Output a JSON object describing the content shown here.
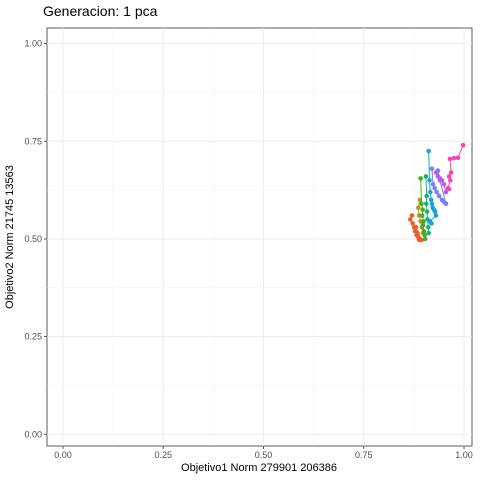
{
  "chart_data": {
    "type": "scatter",
    "title": "Generacion: 1 pca",
    "xlabel": "Objetivo1 Norm 279901 206386",
    "ylabel": "Objetivo2 Norm 21745 13563",
    "xlim": [
      -0.04,
      1.02
    ],
    "ylim": [
      -0.03,
      1.04
    ],
    "x_ticks": [
      0.0,
      0.25,
      0.5,
      0.75,
      1.0
    ],
    "x_tick_labels": [
      "0.00",
      "0.25",
      "0.50",
      "0.75",
      "1.00"
    ],
    "y_ticks": [
      0.0,
      0.25,
      0.5,
      0.75,
      1.0
    ],
    "y_tick_labels": [
      "0.00",
      "0.25",
      "0.50",
      "0.75",
      "1.00"
    ],
    "grid": true,
    "connected": true,
    "series": [
      {
        "color": "#E7612F",
        "x": [
          0.87,
          0.866,
          0.872,
          0.876,
          0.878,
          0.882,
          0.886,
          0.89,
          0.894,
          0.88,
          0.884,
          0.888
        ],
        "y": [
          0.56,
          0.55,
          0.54,
          0.53,
          0.52,
          0.51,
          0.505,
          0.5,
          0.497,
          0.53,
          0.515,
          0.498
        ]
      },
      {
        "color": "#B09C1E",
        "x": [
          0.89,
          0.886,
          0.888,
          0.892,
          0.895,
          0.898
        ],
        "y": [
          0.6,
          0.58,
          0.56,
          0.545,
          0.53,
          0.515
        ]
      },
      {
        "color": "#4FA821",
        "x": [
          0.892,
          0.894,
          0.897,
          0.896,
          0.899,
          0.898,
          0.9,
          0.902,
          0.903
        ],
        "y": [
          0.655,
          0.59,
          0.575,
          0.56,
          0.545,
          0.535,
          0.52,
          0.51,
          0.5
        ]
      },
      {
        "color": "#13B37D",
        "x": [
          0.905,
          0.907,
          0.906,
          0.908,
          0.909,
          0.911,
          0.912
        ],
        "y": [
          0.66,
          0.61,
          0.59,
          0.57,
          0.55,
          0.53,
          0.515
        ]
      },
      {
        "color": "#1BA3D6",
        "x": [
          0.912,
          0.914,
          0.916,
          0.918,
          0.92,
          0.922,
          0.925,
          0.928,
          0.93,
          0.915,
          0.919
        ],
        "y": [
          0.725,
          0.65,
          0.62,
          0.6,
          0.59,
          0.58,
          0.575,
          0.57,
          0.56,
          0.545,
          0.54
        ]
      },
      {
        "color": "#7B7FF0",
        "x": [
          0.92,
          0.923,
          0.927,
          0.932,
          0.938,
          0.945,
          0.95,
          0.955,
          0.94,
          0.935
        ],
        "y": [
          0.68,
          0.64,
          0.63,
          0.62,
          0.61,
          0.6,
          0.595,
          0.59,
          0.65,
          0.675
        ]
      },
      {
        "color": "#C05AE6",
        "x": [
          0.93,
          0.935,
          0.94,
          0.945,
          0.95,
          0.955
        ],
        "y": [
          0.67,
          0.66,
          0.655,
          0.65,
          0.64,
          0.62
        ]
      },
      {
        "color": "#F04AB0",
        "x": [
          0.998,
          0.985,
          0.975,
          0.965,
          0.968,
          0.963,
          0.966,
          0.96,
          0.963
        ],
        "y": [
          0.74,
          0.708,
          0.707,
          0.705,
          0.67,
          0.66,
          0.65,
          0.63,
          0.628
        ]
      }
    ]
  }
}
